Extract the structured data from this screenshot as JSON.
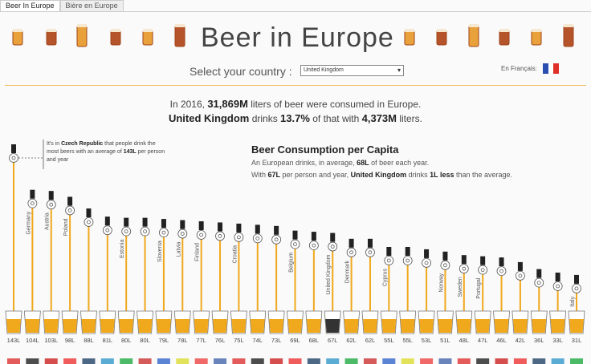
{
  "tabs": [
    "Beer In Europe",
    "Bière en Europe"
  ],
  "header": {
    "title": "Beer in Europe",
    "select_label": "Select your country :",
    "selected_country": "United Kingdom",
    "language_label": "En Français:"
  },
  "summary": [
    [
      "In 2016, ",
      "31,869M",
      " liters of beer were consumed in Europe."
    ],
    [
      "United Kingdom",
      " drinks ",
      "13.7%",
      " of that with ",
      "4,373M",
      " liters."
    ]
  ],
  "annotation": [
    "It's in ",
    "Czech Republic",
    " that people drink the most beers with an average of ",
    "143L",
    " per person and year"
  ],
  "per_capita": {
    "heading": "Beer Consumption per Capita",
    "line1": [
      "An European drinks, in average, ",
      "68L",
      " of beer each year."
    ],
    "line2": [
      "With ",
      "67L",
      " per person and year, ",
      "United Kingdom",
      " drinks ",
      "1L less",
      " than the average."
    ]
  },
  "chart_data": {
    "type": "bar",
    "categories": [
      null,
      "Germany",
      "Austria",
      "Poland",
      null,
      null,
      "Estonia",
      null,
      "Slovenia",
      "Latvia",
      "Finland",
      null,
      "Croatia",
      null,
      null,
      "Belgium",
      null,
      "United Kingdom",
      "Denmark",
      null,
      "Cyprus",
      null,
      null,
      "Norway",
      "Sweden",
      "Portugal",
      null,
      null,
      null,
      null,
      "Italy"
    ],
    "values": [
      143,
      104,
      103,
      98,
      88,
      81,
      80,
      80,
      79,
      78,
      77,
      76,
      75,
      74,
      73,
      69,
      68,
      67,
      62,
      62,
      55,
      55,
      53,
      51,
      48,
      47,
      46,
      42,
      36,
      33,
      31
    ],
    "value_labels": [
      "143L",
      "104L",
      "103L",
      "98L",
      "88L",
      "81L",
      "80L",
      "80L",
      "79L",
      "78L",
      "77L",
      "76L",
      "75L",
      "74L",
      "73L",
      "69L",
      "68L",
      "67L",
      "62L",
      "62L",
      "55L",
      "55L",
      "53L",
      "51L",
      "48L",
      "47L",
      "46L",
      "42L",
      "36L",
      "33L",
      "31L"
    ],
    "color": "#f0a81c",
    "highlight_color": "#333333",
    "highlight_index": 17
  }
}
